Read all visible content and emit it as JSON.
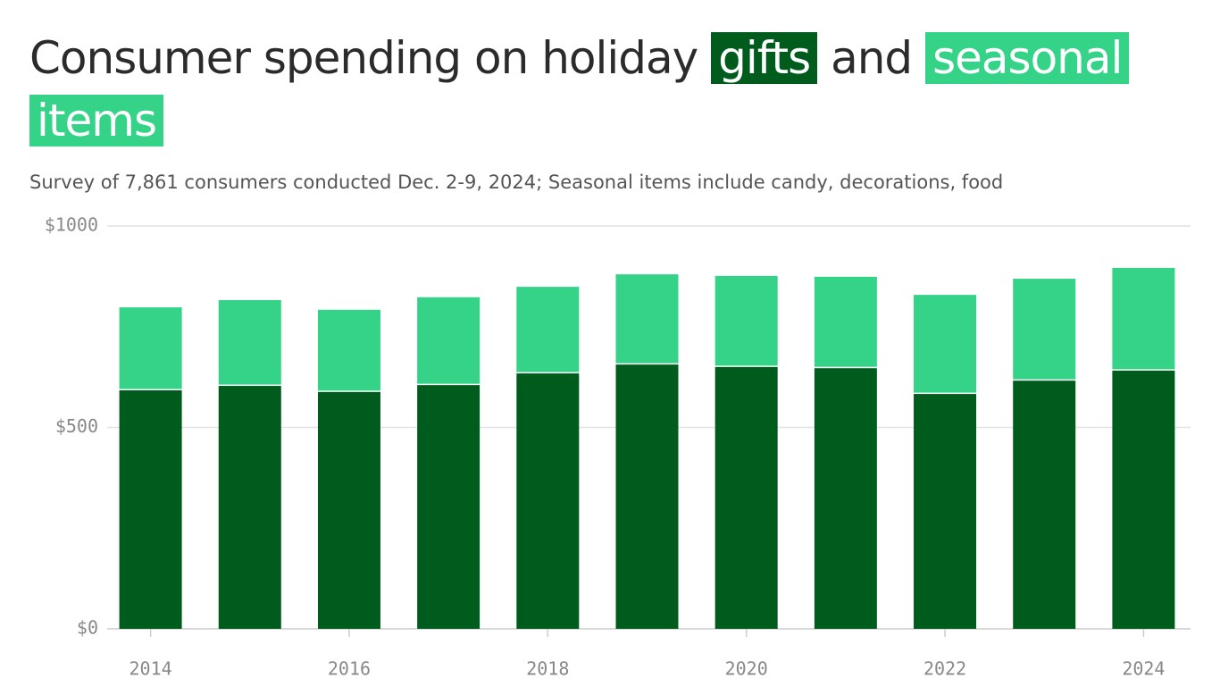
{
  "chart_data": {
    "type": "stacked_bar",
    "title": [
      "Consumer spending on holiday",
      "and"
    ],
    "subtitle": "Survey of 7,861 consumers conducted Dec. 2-9, 2024; Seasonal items include candy, decorations, food",
    "categories": [
      "2014",
      null,
      "2016",
      null,
      "2018",
      null,
      "2020",
      null,
      "2022",
      null,
      "2024"
    ],
    "series": [
      {
        "name": "gifts",
        "color": "#005c1d",
        "values": [
          592,
          603,
          588,
          605,
          634,
          656,
          650,
          647,
          583,
          616,
          641
        ]
      },
      {
        "name": "seasonal items",
        "color": "#34d388",
        "values": [
          206,
          213,
          204,
          218,
          215,
          224,
          226,
          227,
          246,
          253,
          255
        ]
      }
    ],
    "ylim": [
      0,
      1000
    ],
    "yticks": [
      {
        "value": 0,
        "label": "$0"
      },
      {
        "value": 500,
        "label": "$500"
      },
      {
        "value": 1000,
        "label": "$1000"
      }
    ],
    "grid": true
  }
}
